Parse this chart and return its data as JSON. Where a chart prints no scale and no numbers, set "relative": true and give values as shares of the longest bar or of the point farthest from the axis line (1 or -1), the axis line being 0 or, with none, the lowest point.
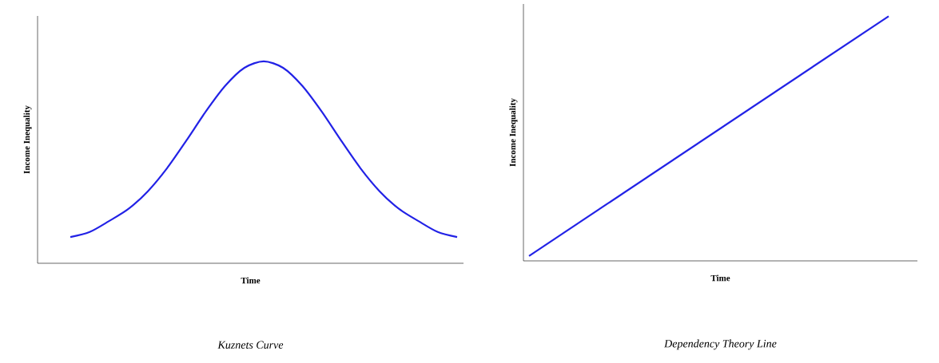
{
  "chart_data": [
    {
      "type": "line",
      "relative": true,
      "xlabel": "Time",
      "ylabel": "Income Inequality",
      "color": "#2222e6",
      "tick_labels": false,
      "annotations": [
        "Kuznets Curve"
      ],
      "categories": [
        null,
        null,
        null,
        null,
        null,
        null,
        null,
        null,
        null,
        null,
        null,
        null,
        null,
        null,
        null,
        null,
        null,
        null,
        null,
        null,
        null
      ],
      "values": [
        0.13,
        0.155,
        0.209,
        0.269,
        0.356,
        0.471,
        0.608,
        0.751,
        0.878,
        0.968,
        1.0,
        0.968,
        0.878,
        0.751,
        0.608,
        0.471,
        0.356,
        0.269,
        0.209,
        0.155,
        0.13
      ]
    },
    {
      "type": "line",
      "relative": true,
      "xlabel": "Time",
      "ylabel": "Income Inequality",
      "color": "#2222e6",
      "tick_labels": false,
      "annotations": [
        "Dependency Theory Line"
      ],
      "categories": [
        null,
        null
      ],
      "values": [
        0.02,
        1.0
      ]
    }
  ]
}
